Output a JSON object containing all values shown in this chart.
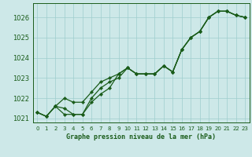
{
  "title": "Graphe pression niveau de la mer (hPa)",
  "background_color": "#cde8e8",
  "line_color": "#1a5c1a",
  "grid_color": "#9ecece",
  "xlim": [
    -0.5,
    23.5
  ],
  "ylim": [
    1020.8,
    1026.7
  ],
  "yticks": [
    1021,
    1022,
    1023,
    1024,
    1025,
    1026
  ],
  "xticks": [
    0,
    1,
    2,
    3,
    4,
    5,
    6,
    7,
    8,
    9,
    10,
    11,
    12,
    13,
    14,
    15,
    16,
    17,
    18,
    19,
    20,
    21,
    22,
    23
  ],
  "hours": [
    0,
    1,
    2,
    3,
    4,
    5,
    6,
    7,
    8,
    9,
    10,
    11,
    12,
    13,
    14,
    15,
    16,
    17,
    18,
    19,
    20,
    21,
    22,
    23
  ],
  "s1": [
    1021.3,
    1021.1,
    1021.6,
    1021.2,
    1021.2,
    1021.2,
    1021.8,
    1022.2,
    1022.5,
    1023.2,
    1023.5,
    1023.2,
    1023.2,
    1023.2,
    1023.6,
    1023.3,
    1024.4,
    1025.0,
    1025.3,
    1026.0,
    1026.3,
    1026.3,
    1026.1,
    1026.0
  ],
  "s2": [
    1021.3,
    1021.1,
    1021.6,
    1022.0,
    1021.8,
    1021.8,
    1022.3,
    1022.8,
    1023.0,
    1023.2,
    1023.5,
    1023.2,
    1023.2,
    1023.2,
    1023.6,
    1023.3,
    1024.4,
    1025.0,
    1025.3,
    1026.0,
    1026.3,
    1026.3,
    1026.1,
    1026.0
  ],
  "s3": [
    1021.3,
    1021.1,
    1021.6,
    1021.5,
    1021.2,
    1021.2,
    1022.0,
    1022.5,
    1022.8,
    1023.0,
    1023.5,
    1023.2,
    1023.2,
    1023.2,
    1023.6,
    1023.3,
    1024.4,
    1025.0,
    1025.3,
    1026.0,
    1026.3,
    1026.3,
    1026.1,
    1026.0
  ],
  "figsize": [
    3.2,
    2.0
  ],
  "dpi": 100,
  "ylabel_fontsize": 6,
  "xlabel_fontsize": 6,
  "tick_fontsize": 5,
  "lw": 0.9,
  "ms": 2.2
}
